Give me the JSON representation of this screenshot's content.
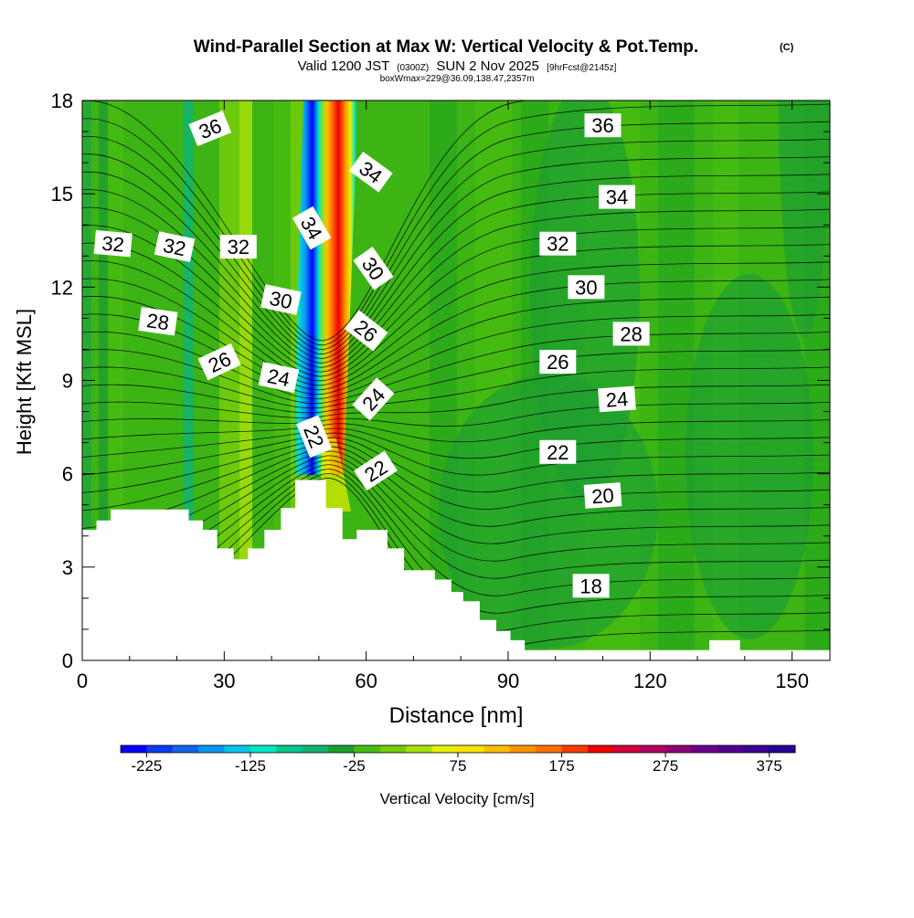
{
  "header": {
    "title": "Wind-Parallel Section at Max W: Vertical Velocity & Pot.Temp.",
    "copyright": "(C)",
    "valid_prefix": "Valid 1200 JST",
    "valid_utc": "(0300Z)",
    "valid_date": "SUN 2 Nov 2025",
    "forecast_info": "[9hrFcst@2145z]",
    "box_info": "boxWmax=229@36.09,138.47,2357m"
  },
  "colorbar": {
    "label": "Vertical Velocity [cm/s]",
    "min": -250,
    "max": 400,
    "step": 25,
    "tick_values": [
      -225,
      -125,
      -25,
      75,
      175,
      275,
      375
    ],
    "tick_labels": [
      "-225",
      "-125",
      "-25",
      "75",
      "175",
      "275",
      "375"
    ],
    "colors": [
      "#0000ff",
      "#0a3cf0",
      "#1464e8",
      "#0a96f0",
      "#00c8e6",
      "#00e6c8",
      "#00c88c",
      "#10b470",
      "#1ea02c",
      "#46bc12",
      "#74cc0a",
      "#a6e00a",
      "#e6f000",
      "#ffe400",
      "#ffbe00",
      "#ff9400",
      "#ff6e00",
      "#f83c00",
      "#ee0000",
      "#d4003a",
      "#b40060",
      "#8c0078",
      "#6a0088",
      "#500090",
      "#3c0096",
      "#280096"
    ]
  },
  "chart_data": {
    "type": "heatmap",
    "title": "Wind-Parallel Section at Max W: Vertical Velocity & Pot.Temp.",
    "xlabel": "Distance [nm]",
    "ylabel": "Height [Kft MSL]",
    "xlim": [
      0,
      158
    ],
    "ylim": [
      0,
      18
    ],
    "x_ticks": [
      0,
      30,
      60,
      90,
      120,
      150
    ],
    "x_tick_labels": [
      "0",
      "30",
      "60",
      "90",
      "120",
      "150"
    ],
    "y_ticks": [
      0,
      3,
      6,
      9,
      12,
      15,
      18
    ],
    "y_tick_labels": [
      "0",
      "3",
      "6",
      "9",
      "12",
      "15",
      "18"
    ],
    "field": "Vertical Velocity [cm/s]",
    "max_updraft": 229,
    "terrain_kft": [
      [
        0,
        4.2
      ],
      [
        3,
        4.2
      ],
      [
        3,
        4.5
      ],
      [
        6,
        4.5
      ],
      [
        6,
        4.85
      ],
      [
        22.5,
        4.85
      ],
      [
        22.5,
        4.5
      ],
      [
        25.5,
        4.5
      ],
      [
        25.5,
        4.2
      ],
      [
        28.5,
        4.2
      ],
      [
        28.5,
        3.6
      ],
      [
        32,
        3.6
      ],
      [
        32,
        3.25
      ],
      [
        35,
        3.25
      ],
      [
        35,
        3.6
      ],
      [
        38.5,
        3.6
      ],
      [
        38.5,
        4.2
      ],
      [
        42,
        4.2
      ],
      [
        42,
        4.9
      ],
      [
        45,
        4.9
      ],
      [
        45,
        5.8
      ],
      [
        51.5,
        5.8
      ],
      [
        51.5,
        4.9
      ],
      [
        55,
        4.9
      ],
      [
        55,
        3.9
      ],
      [
        58,
        3.9
      ],
      [
        58,
        4.2
      ],
      [
        64.5,
        4.2
      ],
      [
        64.5,
        3.6
      ],
      [
        68,
        3.6
      ],
      [
        68,
        2.9
      ],
      [
        74.5,
        2.9
      ],
      [
        74.5,
        2.6
      ],
      [
        78,
        2.6
      ],
      [
        78,
        2.2
      ],
      [
        80.5,
        2.2
      ],
      [
        80.5,
        1.9
      ],
      [
        84,
        1.9
      ],
      [
        84,
        1.3
      ],
      [
        87.5,
        1.3
      ],
      [
        87.5,
        0.95
      ],
      [
        90.5,
        0.95
      ],
      [
        90.5,
        0.65
      ],
      [
        93.5,
        0.65
      ],
      [
        93.5,
        0.33
      ],
      [
        132.5,
        0.33
      ],
      [
        132.5,
        0.65
      ],
      [
        139,
        0.65
      ],
      [
        139,
        0.33
      ],
      [
        158,
        0.33
      ]
    ],
    "contour_labels": [
      {
        "text": "36",
        "x": 27,
        "y": 17.1,
        "angle": -22
      },
      {
        "text": "34",
        "x": 61,
        "y": 15.7,
        "angle": 36
      },
      {
        "text": "34",
        "x": 48.5,
        "y": 13.9,
        "angle": 60
      },
      {
        "text": "32",
        "x": 6.5,
        "y": 13.4,
        "angle": 5
      },
      {
        "text": "32",
        "x": 19.5,
        "y": 13.3,
        "angle": 12
      },
      {
        "text": "32",
        "x": 33,
        "y": 13.3,
        "angle": 0
      },
      {
        "text": "30",
        "x": 42,
        "y": 11.6,
        "angle": 12
      },
      {
        "text": "30",
        "x": 61.5,
        "y": 12.6,
        "angle": 55
      },
      {
        "text": "28",
        "x": 16,
        "y": 10.9,
        "angle": 8
      },
      {
        "text": "26",
        "x": 60,
        "y": 10.6,
        "angle": 38
      },
      {
        "text": "26",
        "x": 29,
        "y": 9.6,
        "angle": -25
      },
      {
        "text": "24",
        "x": 41.5,
        "y": 9.1,
        "angle": 12
      },
      {
        "text": "24",
        "x": 61.5,
        "y": 8.4,
        "angle": -48
      },
      {
        "text": "22",
        "x": 49,
        "y": 7.2,
        "angle": 68
      },
      {
        "text": "22",
        "x": 62,
        "y": 6.1,
        "angle": -33
      },
      {
        "text": "36",
        "x": 110,
        "y": 17.2,
        "angle": 0
      },
      {
        "text": "34",
        "x": 113,
        "y": 14.9,
        "angle": 0
      },
      {
        "text": "32",
        "x": 100.5,
        "y": 13.4,
        "angle": 0
      },
      {
        "text": "30",
        "x": 106.5,
        "y": 12.0,
        "angle": 0
      },
      {
        "text": "28",
        "x": 116,
        "y": 10.5,
        "angle": 0
      },
      {
        "text": "26",
        "x": 100.5,
        "y": 9.6,
        "angle": 0
      },
      {
        "text": "24",
        "x": 113,
        "y": 8.4,
        "angle": -4
      },
      {
        "text": "22",
        "x": 100.5,
        "y": 6.7,
        "angle": 0
      },
      {
        "text": "20",
        "x": 110,
        "y": 5.3,
        "angle": -4
      },
      {
        "text": "18",
        "x": 107.5,
        "y": 2.4,
        "angle": 0
      }
    ],
    "legend_position": "bottom"
  }
}
